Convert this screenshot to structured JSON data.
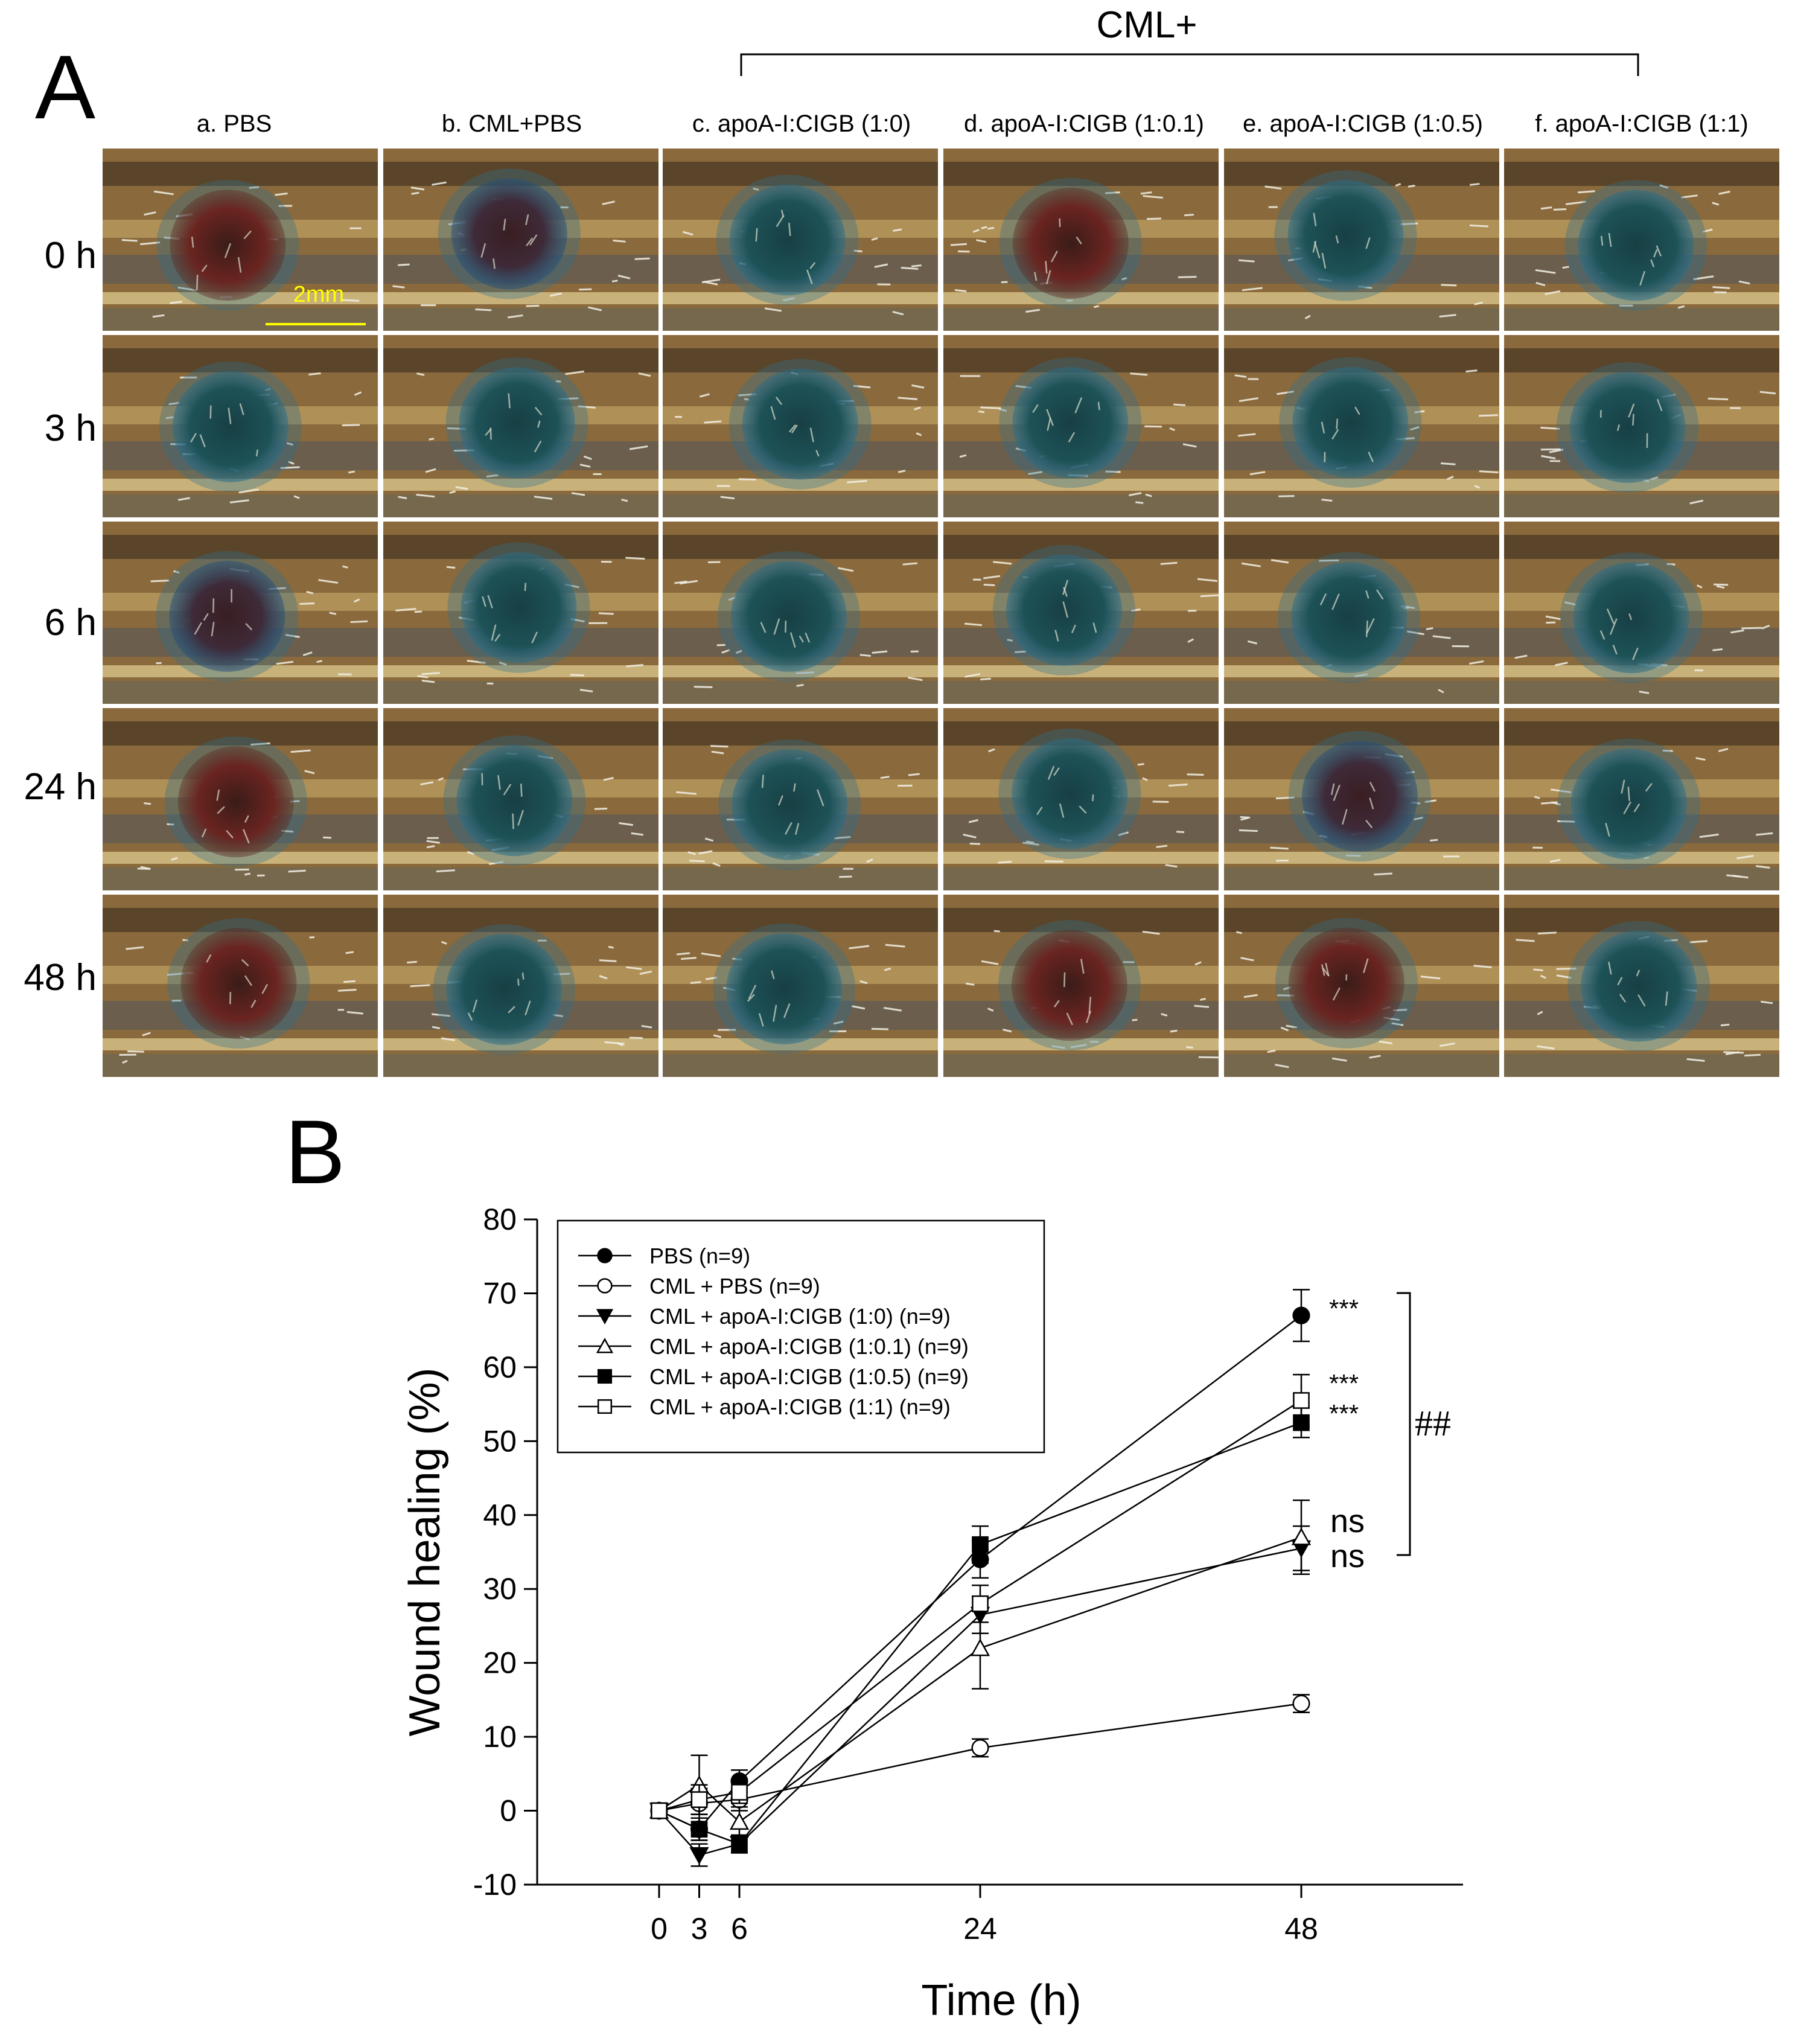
{
  "panel_a": {
    "letter": "A",
    "bracket_label": "CML+",
    "columns": [
      "a. PBS",
      "b. CML+PBS",
      "c. apoA-I:CIGB (1:0)",
      "d. apoA-I:CIGB (1:0.1)",
      "e. apoA-I:CIGB (1:0.5)",
      "f. apoA-I:CIGB (1:1)"
    ],
    "rows": [
      "0 h",
      "3 h",
      "6 h",
      "24 h",
      "48 h"
    ],
    "scale_bar_label": "2mm",
    "wound_stain": [
      [
        "red",
        "red-blue",
        "blue",
        "red",
        "blue",
        "blue"
      ],
      [
        "blue",
        "blue",
        "blue",
        "blue",
        "blue",
        "blue"
      ],
      [
        "red-blue",
        "blue",
        "blue",
        "blue",
        "blue",
        "blue"
      ],
      [
        "red",
        "blue",
        "blue",
        "blue",
        "red-blue",
        "blue"
      ],
      [
        "red",
        "blue",
        "blue",
        "red",
        "red",
        "blue"
      ]
    ],
    "colors": {
      "fish_body": "#8a6a3c",
      "fish_stripe": "#4a3a24",
      "stain_blue": "#1f4f52",
      "stain_red": "#5a1d1a",
      "scale_bar": "#ffff00"
    }
  },
  "panel_b": {
    "letter": "B",
    "significance": [
      "***",
      "***",
      "***",
      "ns",
      "ns"
    ],
    "group_significance": "##",
    "legend_placement": "top-left",
    "chart_data": {
      "type": "line",
      "x": [
        0,
        3,
        6,
        24,
        48
      ],
      "xlabel": "Time (h)",
      "ylabel": "Wound healing (%)",
      "ylim": [
        -10,
        80
      ],
      "yticks": [
        -10,
        0,
        10,
        20,
        30,
        40,
        50,
        60,
        70,
        80
      ],
      "xticks": [
        0,
        3,
        6,
        24,
        48
      ],
      "grid": false,
      "series": [
        {
          "name": "PBS (n=9)",
          "marker": "filled-circle",
          "values": [
            0,
            -2.5,
            4,
            34,
            67
          ],
          "errors": [
            0.5,
            1.5,
            1.5,
            2.5,
            3.5
          ]
        },
        {
          "name": "CML + PBS (n=9)",
          "marker": "open-circle",
          "values": [
            0,
            1,
            1.5,
            8.5,
            14.5
          ],
          "errors": [
            0.5,
            2,
            1.5,
            1.2,
            1.2
          ]
        },
        {
          "name": "CML + apoA-I:CIGB (1:0) (n=9)",
          "marker": "filled-triangle-down",
          "values": [
            0,
            -6,
            -4.5,
            26.5,
            35.5
          ],
          "errors": [
            0.5,
            1.5,
            1.2,
            2.5,
            3
          ]
        },
        {
          "name": "CML + apoA-I:CIGB (1:0.1) (n=9)",
          "marker": "open-triangle-up",
          "values": [
            0,
            3.5,
            -1.5,
            22,
            37
          ],
          "errors": [
            0.5,
            4,
            2,
            5.5,
            5
          ]
        },
        {
          "name": "CML + apoA-I:CIGB (1:0.5) (n=9)",
          "marker": "filled-square",
          "values": [
            0,
            -2.5,
            -4.5,
            36,
            52.5
          ],
          "errors": [
            0.5,
            1.5,
            1.2,
            2.5,
            2
          ]
        },
        {
          "name": "CML + apoA-I:CIGB (1:1) (n=9)",
          "marker": "open-square",
          "values": [
            0,
            1.5,
            2.5,
            28,
            55.5
          ],
          "errors": [
            0.5,
            2,
            1.5,
            2.5,
            3.5
          ]
        }
      ]
    }
  }
}
